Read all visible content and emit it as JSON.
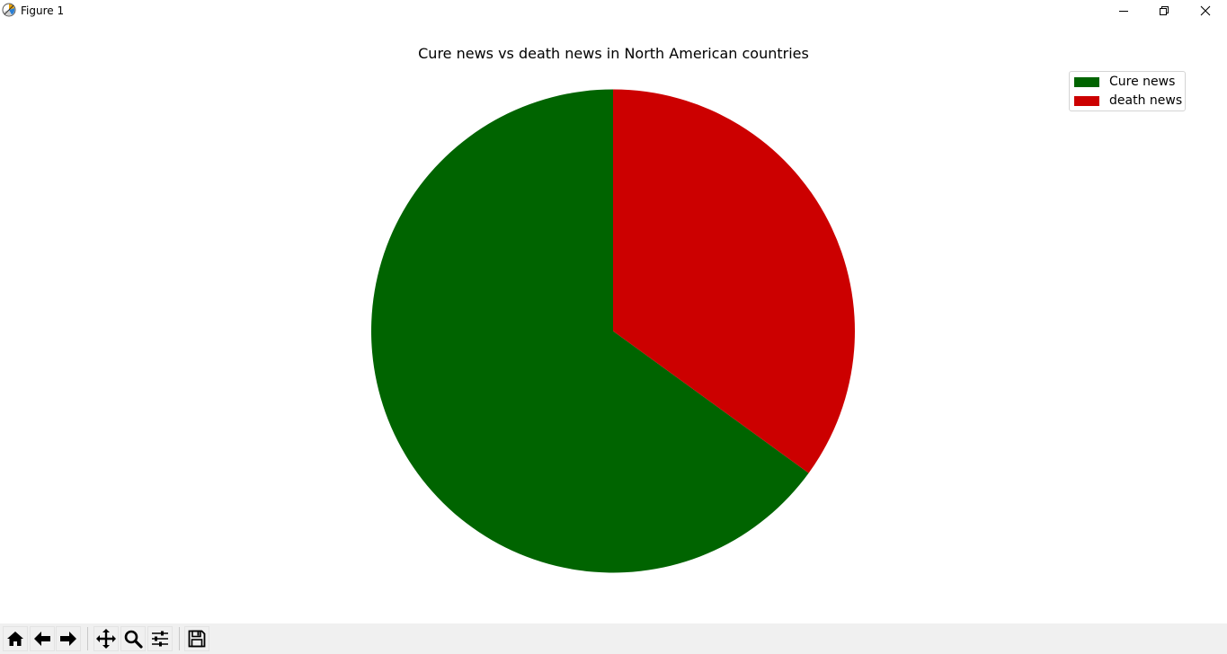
{
  "window": {
    "title": "Figure 1",
    "icons": [
      "app-icon",
      "minimize-icon",
      "restore-icon",
      "close-icon"
    ]
  },
  "chart_data": {
    "type": "pie",
    "title": "Cure news vs death news in North American countries",
    "categories": [
      "Cure news",
      "death news"
    ],
    "values": [
      65,
      35
    ],
    "colors": [
      "#006400",
      "#cc0000"
    ],
    "start_angle": 90,
    "direction": "counterclockwise",
    "legend": "top-right"
  },
  "toolbar": {
    "buttons": [
      {
        "name": "home-button",
        "icon": "home-icon"
      },
      {
        "name": "back-button",
        "icon": "arrow-left-icon"
      },
      {
        "name": "forward-button",
        "icon": "arrow-right-icon"
      },
      {
        "name": "pan-button",
        "icon": "move-icon"
      },
      {
        "name": "zoom-button",
        "icon": "magnifier-icon"
      },
      {
        "name": "configure-subplots-button",
        "icon": "sliders-icon"
      },
      {
        "name": "save-button",
        "icon": "floppy-disk-icon"
      }
    ]
  }
}
